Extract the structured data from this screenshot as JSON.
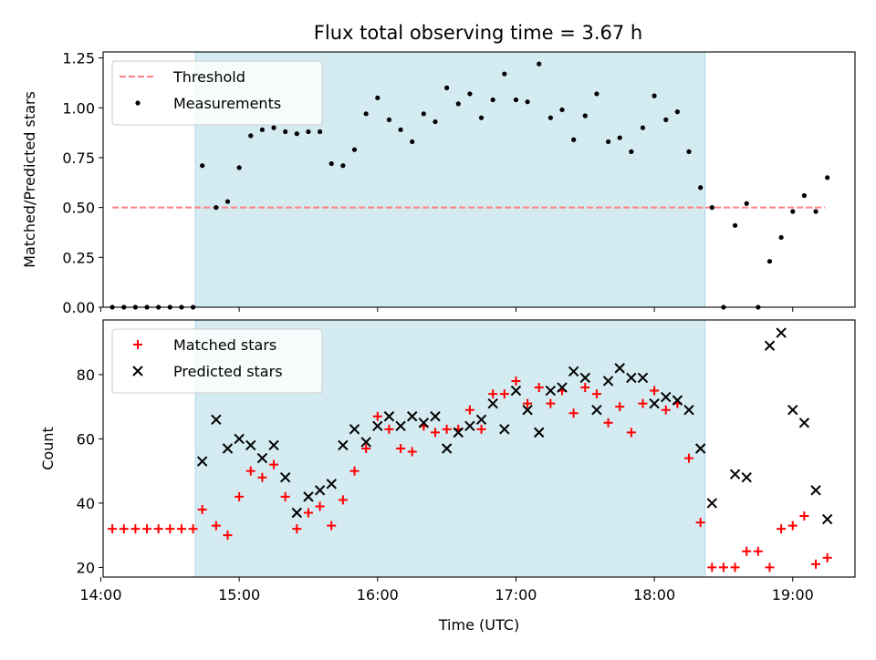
{
  "title": "Flux total observing time = 3.67 h",
  "chart_data": [
    {
      "type": "scatter",
      "ylabel": "Matched/Predicted stars",
      "xlim": [
        "14:01",
        "19:27"
      ],
      "ylim": [
        0,
        1.28
      ],
      "xticks": [
        "14:00",
        "15:00",
        "16:00",
        "17:00",
        "18:00",
        "19:00"
      ],
      "yticks": [
        "0.00",
        "0.25",
        "0.50",
        "0.75",
        "1.00",
        "1.25"
      ],
      "shaded_span": [
        "14:41",
        "18:22"
      ],
      "shade_color": "#d3ebf1",
      "legend_position": "upper left",
      "series": [
        {
          "name": "Threshold",
          "style": "dashed line",
          "color": "#ff7f7f",
          "x": [
            "14:05",
            "19:14"
          ],
          "y": [
            0.5,
            0.5
          ]
        },
        {
          "name": "Measurements",
          "style": "dot",
          "color": "#000000",
          "x": [
            "14:05",
            "14:10",
            "14:15",
            "14:20",
            "14:25",
            "14:30",
            "14:35",
            "14:40",
            "14:44",
            "14:50",
            "14:55",
            "15:00",
            "15:05",
            "15:10",
            "15:15",
            "15:20",
            "15:25",
            "15:30",
            "15:35",
            "15:40",
            "15:45",
            "15:50",
            "15:55",
            "16:00",
            "16:05",
            "16:10",
            "16:15",
            "16:20",
            "16:25",
            "16:30",
            "16:35",
            "16:40",
            "16:45",
            "16:50",
            "16:55",
            "17:00",
            "17:05",
            "17:10",
            "17:15",
            "17:20",
            "17:25",
            "17:30",
            "17:35",
            "17:40",
            "17:45",
            "17:50",
            "17:55",
            "18:00",
            "18:05",
            "18:10",
            "18:15",
            "18:20",
            "18:25",
            "18:30",
            "18:35",
            "18:40",
            "18:45",
            "18:50",
            "18:55",
            "19:00",
            "19:05",
            "19:10"
          ],
          "y": [
            0,
            0,
            0,
            0,
            0,
            0,
            0,
            0,
            0.71,
            0.5,
            0.53,
            0.7,
            0.86,
            0.89,
            0.9,
            0.88,
            0.87,
            0.88,
            0.88,
            0.72,
            0.71,
            0.79,
            0.97,
            1.05,
            0.94,
            0.89,
            0.83,
            0.97,
            0.93,
            1.1,
            1.02,
            1.07,
            0.95,
            1.04,
            1.17,
            1.04,
            1.03,
            1.22,
            0.95,
            0.99,
            0.84,
            0.96,
            1.07,
            0.83,
            0.85,
            0.78,
            0.9,
            1.06,
            0.94,
            0.98,
            0.78,
            0.6,
            0.5,
            0,
            0.41,
            0.52,
            0,
            0.23,
            0.35,
            0.48,
            0.56,
            0.48
          ]
        },
        {
          "name": "",
          "style": "dot",
          "color": "#000000",
          "x": [
            "19:15"
          ],
          "y": [
            0.65
          ]
        }
      ]
    },
    {
      "type": "scatter",
      "xlabel": "Time (UTC)",
      "ylabel": "Count",
      "xlim": [
        "14:01",
        "19:27"
      ],
      "ylim": [
        17,
        97
      ],
      "xticks": [
        "14:00",
        "15:00",
        "16:00",
        "17:00",
        "18:00",
        "19:00"
      ],
      "yticks": [
        "20",
        "40",
        "60",
        "80"
      ],
      "shaded_span": [
        "14:41",
        "18:22"
      ],
      "shade_color": "#d3ebf1",
      "legend_position": "upper left",
      "series": [
        {
          "name": "Matched stars",
          "marker": "plus",
          "color": "#ff0000",
          "x": [
            "14:05",
            "14:10",
            "14:15",
            "14:20",
            "14:25",
            "14:30",
            "14:35",
            "14:40",
            "14:44",
            "14:50",
            "14:55",
            "15:00",
            "15:05",
            "15:10",
            "15:15",
            "15:20",
            "15:25",
            "15:30",
            "15:35",
            "15:40",
            "15:45",
            "15:50",
            "15:55",
            "16:00",
            "16:05",
            "16:10",
            "16:15",
            "16:20",
            "16:25",
            "16:30",
            "16:35",
            "16:40",
            "16:45",
            "16:50",
            "16:55",
            "17:00",
            "17:05",
            "17:10",
            "17:15",
            "17:20",
            "17:25",
            "17:30",
            "17:35",
            "17:40",
            "17:45",
            "17:50",
            "17:55",
            "18:00",
            "18:05",
            "18:10",
            "18:15",
            "18:20",
            "18:25",
            "18:30",
            "18:35",
            "18:40",
            "18:45",
            "18:50",
            "18:55",
            "19:00",
            "19:05",
            "19:10",
            "19:15"
          ],
          "y": [
            32,
            32,
            32,
            32,
            32,
            32,
            32,
            32,
            38,
            33,
            30,
            42,
            50,
            48,
            52,
            42,
            32,
            37,
            39,
            33,
            41,
            50,
            57,
            67,
            63,
            57,
            56,
            64,
            62,
            63,
            63,
            69,
            63,
            74,
            74,
            78,
            71,
            76,
            71,
            75,
            68,
            76,
            74,
            65,
            70,
            62,
            71,
            75,
            69,
            71,
            54,
            34,
            20,
            20,
            20,
            25,
            25,
            20,
            32,
            33,
            36,
            21,
            23
          ]
        },
        {
          "name": "Predicted stars",
          "marker": "x",
          "color": "#000000",
          "x": [
            "14:44",
            "14:50",
            "14:55",
            "15:00",
            "15:05",
            "15:10",
            "15:15",
            "15:20",
            "15:25",
            "15:30",
            "15:35",
            "15:40",
            "15:45",
            "15:50",
            "15:55",
            "16:00",
            "16:05",
            "16:10",
            "16:15",
            "16:20",
            "16:25",
            "16:30",
            "16:35",
            "16:40",
            "16:45",
            "16:50",
            "16:55",
            "17:00",
            "17:05",
            "17:10",
            "17:15",
            "17:20",
            "17:25",
            "17:30",
            "17:35",
            "17:40",
            "17:45",
            "17:50",
            "17:55",
            "18:00",
            "18:05",
            "18:10",
            "18:15",
            "18:20",
            "18:25",
            "18:35",
            "18:40",
            "18:50",
            "18:55",
            "19:00",
            "19:05",
            "19:10",
            "19:15"
          ],
          "y": [
            53,
            66,
            57,
            60,
            58,
            54,
            58,
            48,
            37,
            42,
            44,
            46,
            58,
            63,
            59,
            64,
            67,
            64,
            67,
            65,
            67,
            57,
            62,
            64,
            66,
            71,
            63,
            75,
            69,
            62,
            75,
            76,
            81,
            79,
            69,
            78,
            82,
            79,
            79,
            71,
            73,
            72,
            69,
            57,
            40,
            49,
            48,
            89,
            93,
            69,
            65,
            44,
            35
          ]
        }
      ]
    }
  ]
}
